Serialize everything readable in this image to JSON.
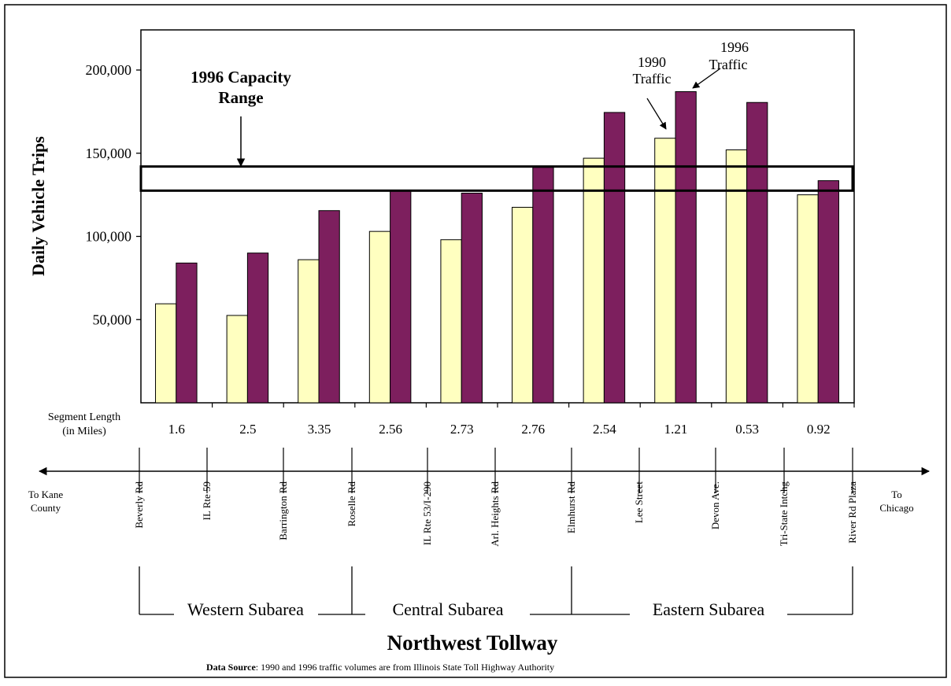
{
  "chart_data": {
    "type": "bar",
    "title": "Northwest Tollway",
    "ylabel": "Daily Vehicle Trips",
    "ylim": [
      0,
      200000
    ],
    "yticks": [
      50000,
      100000,
      150000,
      200000
    ],
    "ytick_labels": [
      "50,000",
      "100,000",
      "150,000",
      "200,000"
    ],
    "series": [
      {
        "name": "1990 Traffic",
        "color": "#ffffc0",
        "values": [
          59500,
          52500,
          86000,
          103000,
          98000,
          117500,
          147000,
          159000,
          152000,
          125000
        ]
      },
      {
        "name": "1996 Traffic",
        "color": "#7d1f5e",
        "values": [
          84000,
          90000,
          115500,
          127500,
          126000,
          141500,
          174500,
          187000,
          180500,
          133500
        ]
      }
    ],
    "capacity_band": {
      "label": "1996 Capacity Range",
      "low": 127500,
      "high": 142000
    },
    "annotations": {
      "capacity_line1": "1996 Capacity",
      "capacity_line2": "Range",
      "a1990_line1": "1990",
      "a1990_line2": "Traffic",
      "a1996_line1": "1996",
      "a1996_line2": "Traffic"
    },
    "segment_length_label_line1": "Segment Length",
    "segment_length_label_line2": "(in Miles)",
    "segment_lengths": [
      "1.6",
      "2.5",
      "3.35",
      "2.56",
      "2.73",
      "2.76",
      "2.54",
      "1.21",
      "0.53",
      "0.92"
    ],
    "locations": [
      "Beverly Rd",
      "IL Rte 59",
      "Barrington Rd",
      "Roselle Rd",
      "IL Rte 53/I-290",
      "Arl. Heights Rd",
      "Elmhurst Rd",
      "Lee Street",
      "Devon Ave.",
      "Tri-State Intchg",
      "River Rd Plaza"
    ],
    "left_end_line1": "To Kane",
    "left_end_line2": "County",
    "right_end_line1": "To",
    "right_end_line2": "Chicago",
    "subareas": [
      "Western Subarea",
      "Central Subarea",
      "Eastern Subarea"
    ],
    "source_label": "Data Source",
    "source_text": ":   1990 and 1996 traffic volumes are from Illinois State Toll Highway Authority"
  }
}
